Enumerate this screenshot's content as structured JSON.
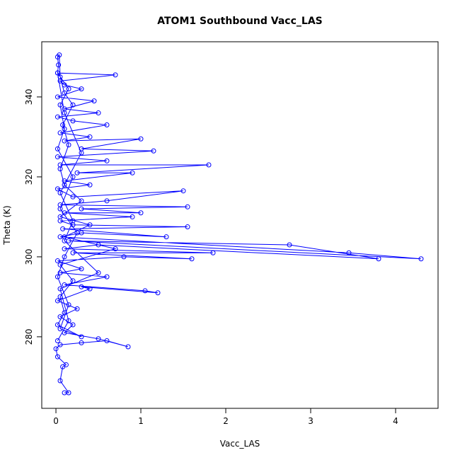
{
  "chart_data": {
    "type": "line",
    "markers": true,
    "title": "ATOM1 Southbound Vacc_LAS",
    "x_label": "Vacc_LAS",
    "y_label": "Theta (K)",
    "x": [
      0.1,
      0.15,
      0.05,
      0.08,
      0.12,
      0.02,
      0.0,
      0.05,
      0.3,
      0.6,
      0.85,
      0.5,
      0.1,
      0.2,
      0.05,
      0.25,
      0.02,
      0.4,
      0.3,
      1.2,
      1.05,
      0.1,
      0.6,
      0.05,
      0.3,
      0.02,
      0.8,
      1.6,
      0.2,
      1.85,
      0.1,
      0.5,
      3.8,
      2.75,
      0.15,
      4.3,
      3.45,
      0.05,
      0.3,
      1.3,
      0.08,
      1.55,
      0.2,
      0.05,
      0.9,
      0.1,
      1.0,
      0.3,
      1.55,
      0.05,
      0.6,
      1.5,
      0.2,
      0.02,
      0.4,
      0.1,
      0.9,
      0.25,
      1.8,
      0.05,
      0.6,
      0.02,
      1.15,
      0.3,
      1.0,
      0.1,
      0.4,
      0.05,
      0.6,
      0.2,
      0.02,
      0.5,
      0.1,
      0.45,
      0.02,
      0.3,
      0.1,
      0.05,
      0.7,
      0.02,
      0.03,
      0.02,
      0.04,
      0.05,
      0.1,
      0.2,
      0.08,
      0.15,
      0.05,
      0.1,
      0.3,
      0.05,
      0.4,
      0.1,
      0.7,
      0.05,
      0.2,
      0.05,
      0.1,
      0.02,
      0.3,
      0.05,
      0.15,
      0.02,
      0.1,
      0.25,
      0.05,
      0.2,
      0.02,
      0.1,
      0.05,
      0.15,
      0.02,
      0.1,
      0.3,
      0.05,
      0.2,
      0.1,
      0.5,
      0.05,
      0.15,
      0.02
    ],
    "series": [
      {
        "color": "#0000ff",
        "values": [
          266,
          266,
          269,
          272.5,
          273,
          275,
          277,
          278,
          278.5,
          279,
          277.5,
          279.5,
          281,
          283,
          285,
          287,
          289,
          292,
          292.5,
          291,
          291.5,
          293,
          295,
          296,
          297,
          299,
          300,
          299.5,
          301,
          301,
          302,
          303,
          299.5,
          303,
          304,
          299.5,
          301,
          305,
          306,
          305,
          307,
          307.5,
          308,
          309,
          310,
          311,
          311,
          312,
          312.5,
          313,
          314,
          316.5,
          315,
          317,
          318,
          319,
          321,
          321,
          323,
          323,
          324,
          325,
          326.5,
          327,
          329.5,
          329,
          330,
          331,
          333,
          334,
          335,
          336,
          337,
          339,
          340,
          342,
          343,
          344,
          345.5,
          346,
          348,
          350,
          350.5,
          345,
          341,
          338,
          333,
          328,
          322,
          318,
          314,
          310,
          308,
          305,
          302,
          298,
          294,
          290,
          286,
          283,
          280,
          282,
          288,
          295,
          300,
          306,
          312,
          320,
          327,
          332,
          338,
          342,
          346,
          336,
          326,
          316,
          309,
          304,
          296,
          292,
          284,
          279
        ]
      }
    ],
    "xlim": [
      -0.167,
      4.5
    ],
    "ylim": [
      262.1,
      353.8
    ],
    "xticks": [
      0,
      1,
      2,
      3,
      4
    ],
    "yticks": [
      280,
      300,
      320,
      340
    ]
  }
}
